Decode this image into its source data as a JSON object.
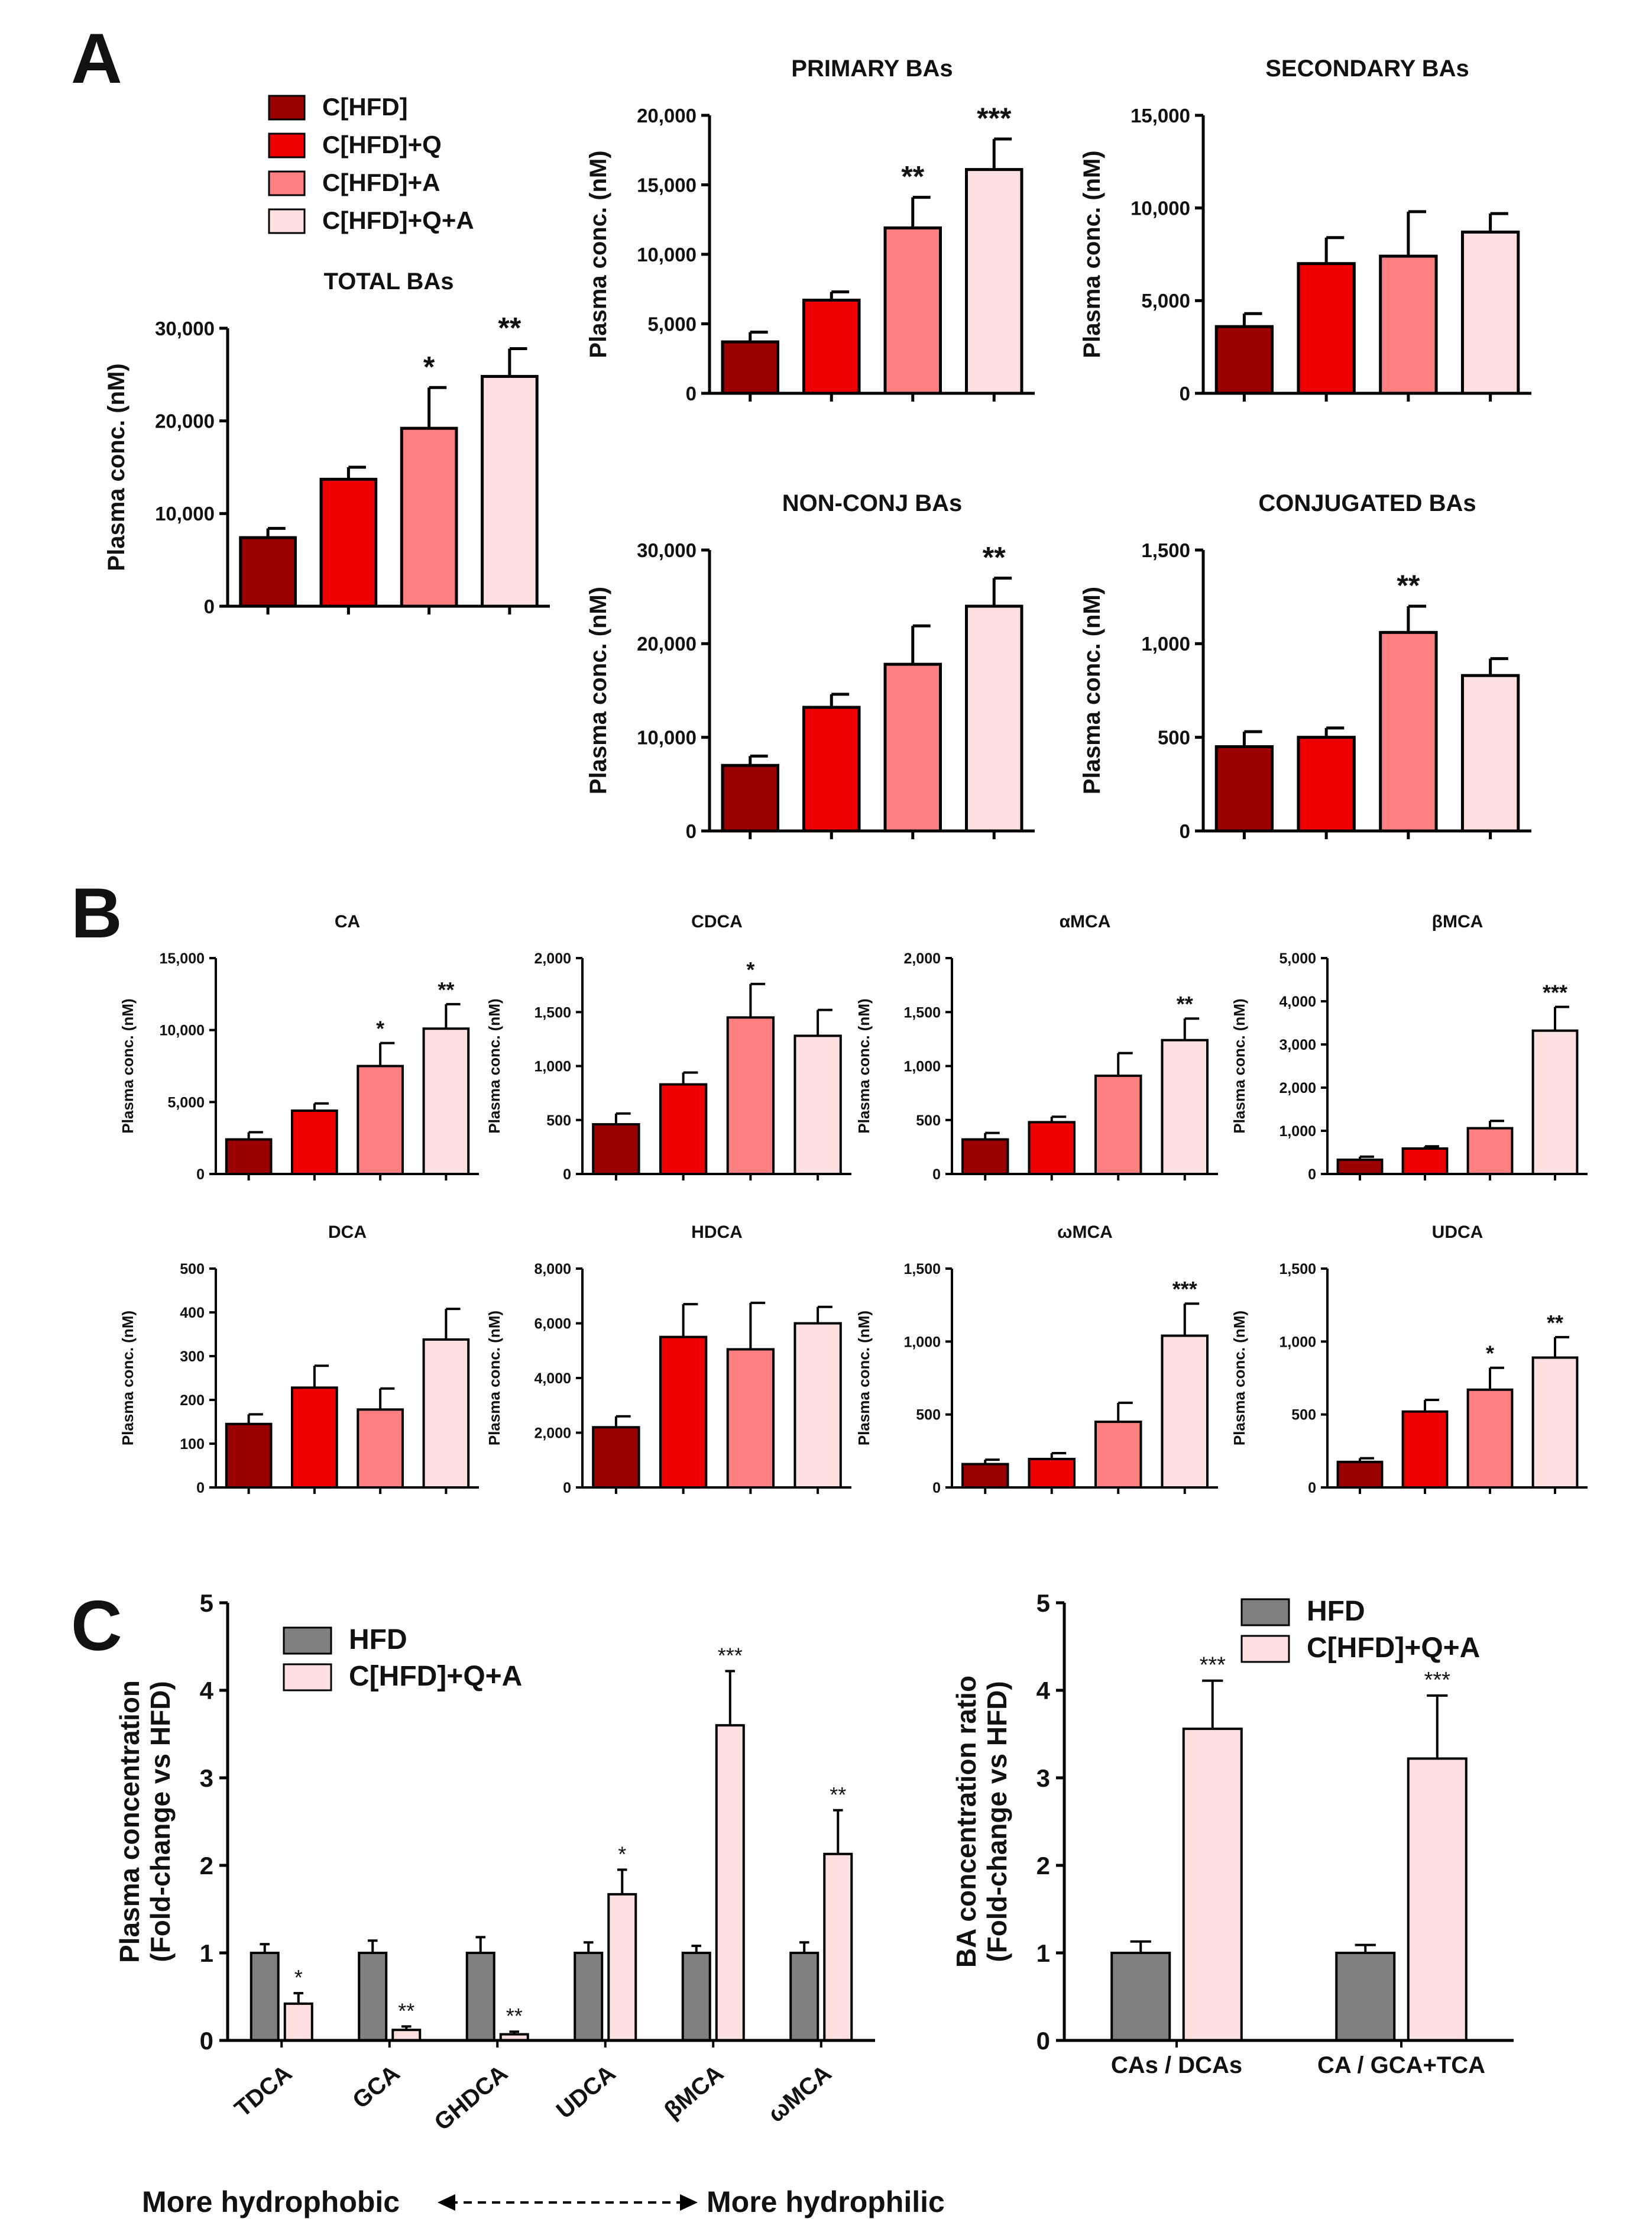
{
  "panel_letters": {
    "a": "A",
    "b": "B",
    "c": "C"
  },
  "colors": {
    "g1": "#9b0000",
    "g2": "#ee0000",
    "g3": "#ff8080",
    "g4": "#ffe0e0",
    "hfd": "#808080",
    "edge": "#000000"
  },
  "legend_a": {
    "entries": [
      {
        "label": "C[HFD]",
        "color": "#9b0000"
      },
      {
        "label": "C[HFD]+Q",
        "color": "#ee0000"
      },
      {
        "label": "C[HFD]+A",
        "color": "#ff8080"
      },
      {
        "label": "C[HFD]+Q+A",
        "color": "#ffe0e0"
      }
    ]
  },
  "legend_c": {
    "entries": [
      {
        "label": "HFD",
        "color": "#808080"
      },
      {
        "label": "C[HFD]+Q+A",
        "color": "#ffe0e0"
      }
    ]
  },
  "chart_data": [
    {
      "id": "a-total",
      "type": "bar",
      "title": "TOTAL BAs",
      "ylabel": "Plasma conc. (nM)",
      "ylim": [
        0,
        30000
      ],
      "yticks": [
        "0",
        "10,000",
        "20,000",
        "30,000"
      ],
      "series": [
        {
          "name": "C[HFD]",
          "values": [
            7400
          ]
        },
        {
          "name": "C[HFD]+Q",
          "values": [
            13700
          ]
        },
        {
          "name": "C[HFD]+A",
          "values": [
            19200
          ]
        },
        {
          "name": "C[HFD]+Q+A",
          "values": [
            24800
          ]
        }
      ],
      "errors": [
        1000,
        1300,
        4400,
        3000
      ],
      "sig": [
        "",
        "",
        "*",
        "**"
      ]
    },
    {
      "id": "a-primary",
      "type": "bar",
      "title": "PRIMARY BAs",
      "ylabel": "Plasma conc. (nM)",
      "ylim": [
        0,
        20000
      ],
      "yticks": [
        "0",
        "5,000",
        "10,000",
        "15,000",
        "20,000"
      ],
      "series": [
        {
          "name": "C[HFD]",
          "values": [
            3700
          ]
        },
        {
          "name": "C[HFD]+Q",
          "values": [
            6700
          ]
        },
        {
          "name": "C[HFD]+A",
          "values": [
            11900
          ]
        },
        {
          "name": "C[HFD]+Q+A",
          "values": [
            16100
          ]
        }
      ],
      "errors": [
        700,
        600,
        2200,
        2200
      ],
      "sig": [
        "",
        "",
        "**",
        "***"
      ]
    },
    {
      "id": "a-secondary",
      "type": "bar",
      "title": "SECONDARY BAs",
      "ylabel": "Plasma conc. (nM)",
      "ylim": [
        0,
        15000
      ],
      "yticks": [
        "0",
        "5,000",
        "10,000",
        "15,000"
      ],
      "series": [
        {
          "name": "C[HFD]",
          "values": [
            3600
          ]
        },
        {
          "name": "C[HFD]+Q",
          "values": [
            7000
          ]
        },
        {
          "name": "C[HFD]+A",
          "values": [
            7400
          ]
        },
        {
          "name": "C[HFD]+Q+A",
          "values": [
            8700
          ]
        }
      ],
      "errors": [
        700,
        1400,
        2400,
        1000
      ],
      "sig": [
        "",
        "",
        "",
        ""
      ]
    },
    {
      "id": "a-nonconj",
      "type": "bar",
      "title": "NON-CONJ BAs",
      "ylabel": "Plasma conc. (nM)",
      "ylim": [
        0,
        30000
      ],
      "yticks": [
        "0",
        "10,000",
        "20,000",
        "30,000"
      ],
      "series": [
        {
          "name": "C[HFD]",
          "values": [
            7000
          ]
        },
        {
          "name": "C[HFD]+Q",
          "values": [
            13200
          ]
        },
        {
          "name": "C[HFD]+A",
          "values": [
            17800
          ]
        },
        {
          "name": "C[HFD]+Q+A",
          "values": [
            24000
          ]
        }
      ],
      "errors": [
        1000,
        1400,
        4100,
        3000
      ],
      "sig": [
        "",
        "",
        "",
        "**"
      ]
    },
    {
      "id": "a-conj",
      "type": "bar",
      "title": "CONJUGATED BAs",
      "ylabel": "Plasma conc. (nM)",
      "ylim": [
        0,
        1500
      ],
      "yticks": [
        "0",
        "500",
        "1,000",
        "1,500"
      ],
      "series": [
        {
          "name": "C[HFD]",
          "values": [
            450
          ]
        },
        {
          "name": "C[HFD]+Q",
          "values": [
            500
          ]
        },
        {
          "name": "C[HFD]+A",
          "values": [
            1060
          ]
        },
        {
          "name": "C[HFD]+Q+A",
          "values": [
            830
          ]
        }
      ],
      "errors": [
        80,
        50,
        140,
        90
      ],
      "sig": [
        "",
        "",
        "**",
        ""
      ]
    },
    {
      "id": "b-ca",
      "type": "bar",
      "title": "CA",
      "ylabel": "Plasma conc. (nM)",
      "ylim": [
        0,
        15000
      ],
      "yticks": [
        "0",
        "5,000",
        "10,000",
        "15,000"
      ],
      "series": [
        {
          "name": "C[HFD]",
          "values": [
            2400
          ]
        },
        {
          "name": "C[HFD]+Q",
          "values": [
            4400
          ]
        },
        {
          "name": "C[HFD]+A",
          "values": [
            7500
          ]
        },
        {
          "name": "C[HFD]+Q+A",
          "values": [
            10100
          ]
        }
      ],
      "errors": [
        500,
        500,
        1600,
        1700
      ],
      "sig": [
        "",
        "",
        "*",
        "**"
      ]
    },
    {
      "id": "b-cdca",
      "type": "bar",
      "title": "CDCA",
      "ylabel": "Plasma conc. (nM)",
      "ylim": [
        0,
        2000
      ],
      "yticks": [
        "0",
        "500",
        "1,000",
        "1,500",
        "2,000"
      ],
      "series": [
        {
          "name": "C[HFD]",
          "values": [
            460
          ]
        },
        {
          "name": "C[HFD]+Q",
          "values": [
            830
          ]
        },
        {
          "name": "C[HFD]+A",
          "values": [
            1450
          ]
        },
        {
          "name": "C[HFD]+Q+A",
          "values": [
            1280
          ]
        }
      ],
      "errors": [
        100,
        110,
        310,
        240
      ],
      "sig": [
        "",
        "",
        "*",
        ""
      ]
    },
    {
      "id": "b-amca",
      "type": "bar",
      "title": "αMCA",
      "ylabel": "Plasma conc. (nM)",
      "ylim": [
        0,
        2000
      ],
      "yticks": [
        "0",
        "500",
        "1,000",
        "1,500",
        "2,000"
      ],
      "series": [
        {
          "name": "C[HFD]",
          "values": [
            320
          ]
        },
        {
          "name": "C[HFD]+Q",
          "values": [
            480
          ]
        },
        {
          "name": "C[HFD]+A",
          "values": [
            910
          ]
        },
        {
          "name": "C[HFD]+Q+A",
          "values": [
            1240
          ]
        }
      ],
      "errors": [
        60,
        50,
        210,
        200
      ],
      "sig": [
        "",
        "",
        "",
        "**"
      ]
    },
    {
      "id": "b-bmca",
      "type": "bar",
      "title": "βMCA",
      "ylabel": "Plasma conc. (nM)",
      "ylim": [
        0,
        5000
      ],
      "yticks": [
        "0",
        "1,000",
        "2,000",
        "3,000",
        "4,000",
        "5,000"
      ],
      "series": [
        {
          "name": "C[HFD]",
          "values": [
            330
          ]
        },
        {
          "name": "C[HFD]+Q",
          "values": [
            590
          ]
        },
        {
          "name": "C[HFD]+A",
          "values": [
            1060
          ]
        },
        {
          "name": "C[HFD]+Q+A",
          "values": [
            3320
          ]
        }
      ],
      "errors": [
        70,
        50,
        170,
        550
      ],
      "sig": [
        "",
        "",
        "",
        "***"
      ]
    },
    {
      "id": "b-dca",
      "type": "bar",
      "title": "DCA",
      "ylabel": "Plasma conc. (nM)",
      "ylim": [
        0,
        500
      ],
      "yticks": [
        "0",
        "100",
        "200",
        "300",
        "400",
        "500"
      ],
      "series": [
        {
          "name": "C[HFD]",
          "values": [
            145
          ]
        },
        {
          "name": "C[HFD]+Q",
          "values": [
            228
          ]
        },
        {
          "name": "C[HFD]+A",
          "values": [
            178
          ]
        },
        {
          "name": "C[HFD]+Q+A",
          "values": [
            338
          ]
        }
      ],
      "errors": [
        22,
        50,
        48,
        70
      ],
      "sig": [
        "",
        "",
        "",
        ""
      ]
    },
    {
      "id": "b-hdca",
      "type": "bar",
      "title": "HDCA",
      "ylabel": "Plasma conc. (nM)",
      "ylim": [
        0,
        8000
      ],
      "yticks": [
        "0",
        "2,000",
        "4,000",
        "6,000",
        "8,000"
      ],
      "series": [
        {
          "name": "C[HFD]",
          "values": [
            2200
          ]
        },
        {
          "name": "C[HFD]+Q",
          "values": [
            5500
          ]
        },
        {
          "name": "C[HFD]+A",
          "values": [
            5050
          ]
        },
        {
          "name": "C[HFD]+Q+A",
          "values": [
            6000
          ]
        }
      ],
      "errors": [
        400,
        1200,
        1700,
        600
      ],
      "sig": [
        "",
        "",
        "",
        ""
      ]
    },
    {
      "id": "b-wmca",
      "type": "bar",
      "title": "ωMCA",
      "ylabel": "Plasma conc. (nM)",
      "ylim": [
        0,
        1500
      ],
      "yticks": [
        "0",
        "500",
        "1,000",
        "1,500"
      ],
      "series": [
        {
          "name": "C[HFD]",
          "values": [
            160
          ]
        },
        {
          "name": "C[HFD]+Q",
          "values": [
            195
          ]
        },
        {
          "name": "C[HFD]+A",
          "values": [
            450
          ]
        },
        {
          "name": "C[HFD]+Q+A",
          "values": [
            1040
          ]
        }
      ],
      "errors": [
        30,
        40,
        130,
        220
      ],
      "sig": [
        "",
        "",
        "",
        "***"
      ]
    },
    {
      "id": "b-udca",
      "type": "bar",
      "title": "UDCA",
      "ylabel": "Plasma conc. (nM)",
      "ylim": [
        0,
        1500
      ],
      "yticks": [
        "0",
        "500",
        "1,000",
        "1,500"
      ],
      "series": [
        {
          "name": "C[HFD]",
          "values": [
            175
          ]
        },
        {
          "name": "C[HFD]+Q",
          "values": [
            520
          ]
        },
        {
          "name": "C[HFD]+A",
          "values": [
            670
          ]
        },
        {
          "name": "C[HFD]+Q+A",
          "values": [
            890
          ]
        }
      ],
      "errors": [
        25,
        80,
        150,
        140
      ],
      "sig": [
        "",
        "",
        "*",
        "**"
      ]
    },
    {
      "id": "c-left",
      "type": "bar",
      "title": "",
      "ylabel_lines": [
        "Plasma concentration",
        "(Fold-change vs HFD)"
      ],
      "ylim": [
        0,
        5
      ],
      "yticks": [
        "0",
        "1",
        "2",
        "3",
        "4",
        "5"
      ],
      "categories": [
        "TDCA",
        "GCA",
        "GHDCA",
        "UDCA",
        "βMCA",
        "ωMCA"
      ],
      "series": [
        {
          "name": "HFD",
          "values": [
            1,
            1,
            1,
            1,
            1,
            1
          ],
          "errors": [
            0.1,
            0.14,
            0.18,
            0.12,
            0.08,
            0.12
          ]
        },
        {
          "name": "C[HFD]+Q+A",
          "values": [
            0.42,
            0.12,
            0.07,
            1.67,
            3.6,
            2.13
          ],
          "errors": [
            0.12,
            0.04,
            0.03,
            0.28,
            0.62,
            0.5
          ]
        }
      ],
      "sig": [
        "*",
        "**",
        "**",
        "*",
        "***",
        "**"
      ],
      "footer": {
        "left": "More hydrophobic",
        "right": "More hydrophilic"
      }
    },
    {
      "id": "c-right",
      "type": "bar",
      "title": "",
      "ylabel_lines": [
        "BA concentration ratio",
        "(Fold-change vs HFD)"
      ],
      "ylim": [
        0,
        5
      ],
      "yticks": [
        "0",
        "1",
        "2",
        "3",
        "4",
        "5"
      ],
      "categories": [
        "CAs / DCAs",
        "CA / GCA+TCA"
      ],
      "series": [
        {
          "name": "HFD",
          "values": [
            1,
            1
          ],
          "errors": [
            0.13,
            0.09
          ]
        },
        {
          "name": "C[HFD]+Q+A",
          "values": [
            3.56,
            3.22
          ],
          "errors": [
            0.55,
            0.72
          ]
        }
      ],
      "sig": [
        "***",
        "***"
      ]
    }
  ]
}
